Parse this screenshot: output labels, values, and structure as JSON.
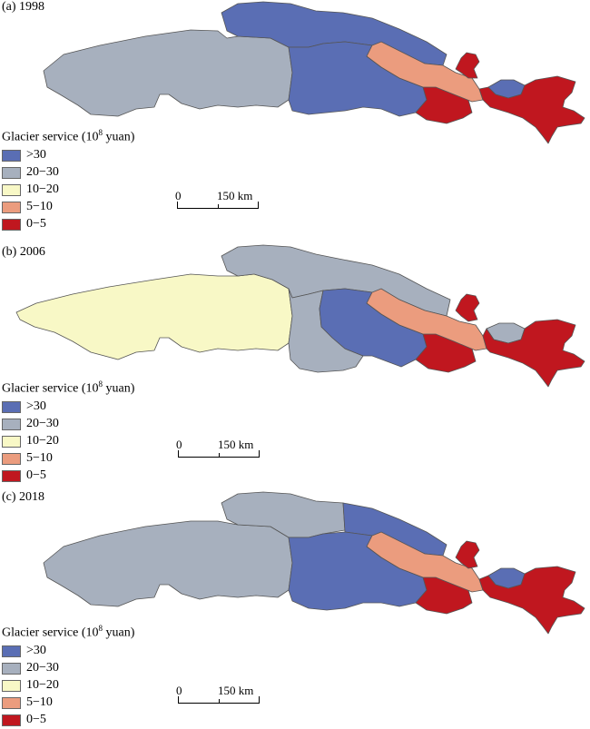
{
  "colors": {
    "gt30": "#5a6eb4",
    "c20_30": "#a7b0be",
    "c10_20": "#f8f8c6",
    "c5_10": "#eb9c7e",
    "c0_5": "#c0171f",
    "border": "#555555"
  },
  "legend": {
    "title_main": "Glacier service (10",
    "title_sup": "8",
    "title_tail": " yuan)",
    "items": [
      {
        "label": ">30",
        "color_key": "gt30"
      },
      {
        "label": "20−30",
        "color_key": "c20_30"
      },
      {
        "label": "10−20",
        "color_key": "c10_20"
      },
      {
        "label": "5−10",
        "color_key": "c5_10"
      },
      {
        "label": "0−5",
        "color_key": "c0_5"
      }
    ]
  },
  "scale": {
    "zero": "0",
    "max": "150 km"
  },
  "panels": [
    {
      "label": "(a) 1998",
      "regions": {
        "west": "c20_30",
        "north_central": "gt30",
        "central": "gt30",
        "southeast_block": "c0_5",
        "ridge": "c5_10",
        "east_notch": "gt30",
        "east": "c0_5",
        "north_tip": "c0_5"
      }
    },
    {
      "label": "(b) 2006",
      "regions": {
        "west": "c10_20",
        "north_central": "c20_30",
        "central": "c20_30",
        "southeast_block": "c0_5",
        "ridge": "c5_10",
        "east_notch": "c20_30",
        "east": "c0_5",
        "north_tip": "c0_5",
        "inner_central": "gt30"
      }
    },
    {
      "label": "(c) 2018",
      "regions": {
        "west": "c20_30",
        "north_central": "c20_30",
        "central": "gt30",
        "southeast_block": "c0_5",
        "ridge": "c5_10",
        "east_notch": "gt30",
        "east": "c0_5",
        "north_tip": "c0_5",
        "inner_central": "gt30"
      }
    }
  ]
}
